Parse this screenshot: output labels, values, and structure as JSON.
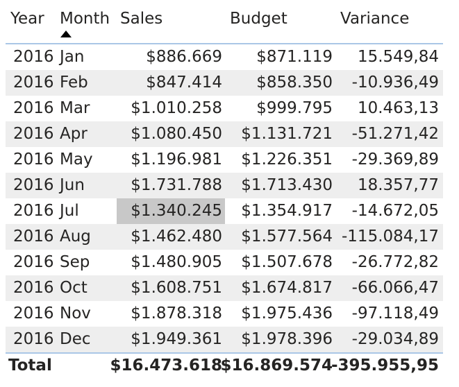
{
  "header": {
    "year": "Year",
    "month": "Month",
    "sales": "Sales",
    "budget": "Budget",
    "variance": "Variance"
  },
  "rows": [
    {
      "year": "2016",
      "month": "Jan",
      "sales": "$886.669",
      "budget": "$871.119",
      "variance": "15.549,84"
    },
    {
      "year": "2016",
      "month": "Feb",
      "sales": "$847.414",
      "budget": "$858.350",
      "variance": "-10.936,49"
    },
    {
      "year": "2016",
      "month": "Mar",
      "sales": "$1.010.258",
      "budget": "$999.795",
      "variance": "10.463,13"
    },
    {
      "year": "2016",
      "month": "Apr",
      "sales": "$1.080.450",
      "budget": "$1.131.721",
      "variance": "-51.271,42"
    },
    {
      "year": "2016",
      "month": "May",
      "sales": "$1.196.981",
      "budget": "$1.226.351",
      "variance": "-29.369,89"
    },
    {
      "year": "2016",
      "month": "Jun",
      "sales": "$1.731.788",
      "budget": "$1.713.430",
      "variance": "18.357,77"
    },
    {
      "year": "2016",
      "month": "Jul",
      "sales": "$1.340.245",
      "budget": "$1.354.917",
      "variance": "-14.672,05",
      "highlighted": true
    },
    {
      "year": "2016",
      "month": "Aug",
      "sales": "$1.462.480",
      "budget": "$1.577.564",
      "variance": "-115.084,17"
    },
    {
      "year": "2016",
      "month": "Sep",
      "sales": "$1.480.905",
      "budget": "$1.507.678",
      "variance": "-26.772,82"
    },
    {
      "year": "2016",
      "month": "Oct",
      "sales": "$1.608.751",
      "budget": "$1.674.817",
      "variance": "-66.066,47"
    },
    {
      "year": "2016",
      "month": "Nov",
      "sales": "$1.878.318",
      "budget": "$1.975.436",
      "variance": "-97.118,49"
    },
    {
      "year": "2016",
      "month": "Dec",
      "sales": "$1.949.361",
      "budget": "$1.978.396",
      "variance": "-29.034,89"
    }
  ],
  "total": {
    "label": "Total",
    "sales": "$16.473.618",
    "budget": "$16.869.574",
    "variance": "-395.955,95"
  },
  "sort": {
    "column": "Month",
    "direction": "ascending",
    "icon": "sort-ascending-icon"
  },
  "colors": {
    "grid_line": "#aac6e6",
    "band": "#eeeeee",
    "selection": "#c8c8c8"
  }
}
